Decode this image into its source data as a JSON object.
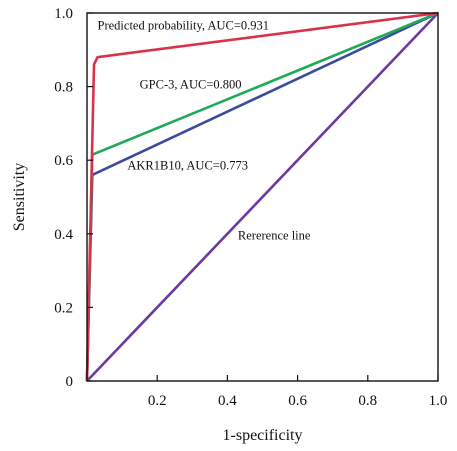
{
  "chart_data": {
    "type": "line",
    "title": "",
    "xlabel": "1-specificity",
    "ylabel": "Sensitivity",
    "xlim": [
      0,
      1
    ],
    "ylim": [
      0,
      1
    ],
    "x_ticks": [
      0.2,
      0.4,
      0.6,
      0.8,
      1.0
    ],
    "x_tick_labels": [
      "0.2",
      "0.4",
      "0.6",
      "0.8",
      "1.0"
    ],
    "y_ticks": [
      0,
      0.2,
      0.4,
      0.6,
      0.8,
      1.0
    ],
    "y_tick_labels": [
      "0",
      "0.2",
      "0.4",
      "0.6",
      "0.8",
      "1.0"
    ],
    "grid": false,
    "legend": "none",
    "series": [
      {
        "name": "Predicted probability, AUC=0.931",
        "color": "#d9334a",
        "x": [
          0,
          0.02,
          0.03,
          1.0
        ],
        "y": [
          0,
          0.86,
          0.88,
          1.0
        ]
      },
      {
        "name": "GPC-3, AUC=0.800",
        "color": "#21a95a",
        "x": [
          0,
          0.015,
          1.0
        ],
        "y": [
          0,
          0.615,
          1.0
        ]
      },
      {
        "name": "AKR1B10, AUC=0.773",
        "color": "#3c4a9c",
        "x": [
          0,
          0.015,
          1.0
        ],
        "y": [
          0,
          0.56,
          1.0
        ]
      },
      {
        "name": "Rererence line",
        "color": "#6a3aa0",
        "x": [
          0,
          1.0
        ],
        "y": [
          0,
          1.0
        ]
      }
    ],
    "annotations": [
      {
        "text": "Predicted probability, AUC=0.931",
        "x": 0.03,
        "y": 0.955
      },
      {
        "text": "GPC-3, AUC=0.800",
        "x": 0.15,
        "y": 0.795
      },
      {
        "text": "AKR1B10, AUC=0.773",
        "x": 0.115,
        "y": 0.575
      },
      {
        "text": "Rererence line",
        "x": 0.43,
        "y": 0.385
      }
    ]
  }
}
